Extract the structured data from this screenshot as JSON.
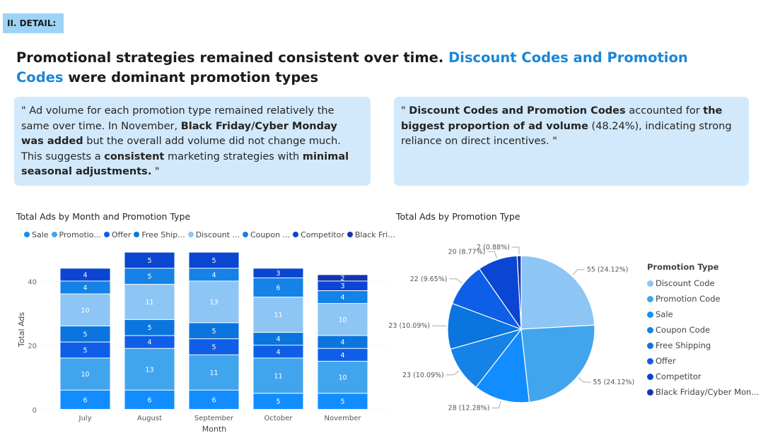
{
  "section_tag": "II. DETAIL:",
  "headline": {
    "part1": "Promotional strategies remained consistent over time. ",
    "highlight": "Discount Codes and Promotion Codes",
    "part2": " were dominant promotion types"
  },
  "callout_left": {
    "t1": "\" Ad volume for each promotion type remained relatively the same over time. In November, ",
    "b1": "Black Friday/Cyber Monday was added",
    "t2": " but the overall add volume did not change much. This suggests a ",
    "b2": "consistent",
    "t3": " marketing strategies with ",
    "b3": "minimal seasonal adjustments.",
    "t4": " \""
  },
  "callout_right": {
    "t1": "\" ",
    "b1": "Discount Codes and Promotion Codes",
    "t2": " accounted for ",
    "b2": "the biggest proportion of ad volume",
    "t3": " (48.24%), indicating strong reliance on direct incentives. \""
  },
  "colors": {
    "Sale": "#118dff",
    "Promotion Code": "#41a5ee",
    "Offer": "#0f5ee8",
    "Free Shipping": "#0a75de",
    "Discount Code": "#8dc5f5",
    "Coupon Code": "#1482e6",
    "Competitor": "#0b46d2",
    "Black Friday/Cyber Monday": "#1335b0"
  },
  "chart_data": [
    {
      "type": "bar",
      "stacked": true,
      "title": "Total Ads by Month and Promotion Type",
      "xlabel": "Month",
      "ylabel": "Total Ads",
      "categories": [
        "July",
        "August",
        "September",
        "October",
        "November"
      ],
      "yticks": [
        0,
        20,
        40
      ],
      "ylim": [
        0,
        50
      ],
      "grid": true,
      "legend": {
        "position": "top",
        "labels": [
          "Sale",
          "Promotio...",
          "Offer",
          "Free Ship...",
          "Discount ...",
          "Coupon ...",
          "Competitor",
          "Black Fri..."
        ]
      },
      "series": [
        {
          "name": "Sale",
          "values": [
            6,
            6,
            6,
            5,
            5
          ]
        },
        {
          "name": "Promotion Code",
          "values": [
            10,
            13,
            11,
            11,
            10
          ]
        },
        {
          "name": "Offer",
          "values": [
            5,
            4,
            5,
            4,
            4
          ]
        },
        {
          "name": "Free Shipping",
          "values": [
            5,
            5,
            5,
            4,
            4
          ]
        },
        {
          "name": "Discount Code",
          "values": [
            10,
            11,
            13,
            11,
            10
          ]
        },
        {
          "name": "Coupon Code",
          "values": [
            4,
            5,
            4,
            6,
            4
          ]
        },
        {
          "name": "Competitor",
          "values": [
            4,
            5,
            5,
            3,
            3
          ]
        },
        {
          "name": "Black Friday/Cyber Monday",
          "values": [
            0,
            0,
            0,
            0,
            2
          ]
        }
      ]
    },
    {
      "type": "pie",
      "title": "Total Ads by Promotion Type",
      "legend_title": "Promotion Type",
      "legend_position": "right",
      "slices": [
        {
          "name": "Discount Code",
          "label": "Discount Code",
          "value": 55,
          "data_label": "55 (24.12%)"
        },
        {
          "name": "Promotion Code",
          "label": "Promotion Code",
          "value": 55,
          "data_label": "55 (24.12%)"
        },
        {
          "name": "Sale",
          "label": "Sale",
          "value": 28,
          "data_label": "28 (12.28%)"
        },
        {
          "name": "Coupon Code",
          "label": "Coupon Code",
          "value": 23,
          "data_label": "23 (10.09%)"
        },
        {
          "name": "Free Shipping",
          "label": "Free Shipping",
          "value": 23,
          "data_label": "23 (10.09%)"
        },
        {
          "name": "Offer",
          "label": "Offer",
          "value": 22,
          "data_label": "22 (9.65%)"
        },
        {
          "name": "Competitor",
          "label": "Competitor",
          "value": 20,
          "data_label": "20 (8.77%)"
        },
        {
          "name": "Black Friday/Cyber Monday",
          "label": "Black Friday/Cyber Mon...",
          "value": 2,
          "data_label": "2 (0.88%)"
        }
      ]
    }
  ]
}
